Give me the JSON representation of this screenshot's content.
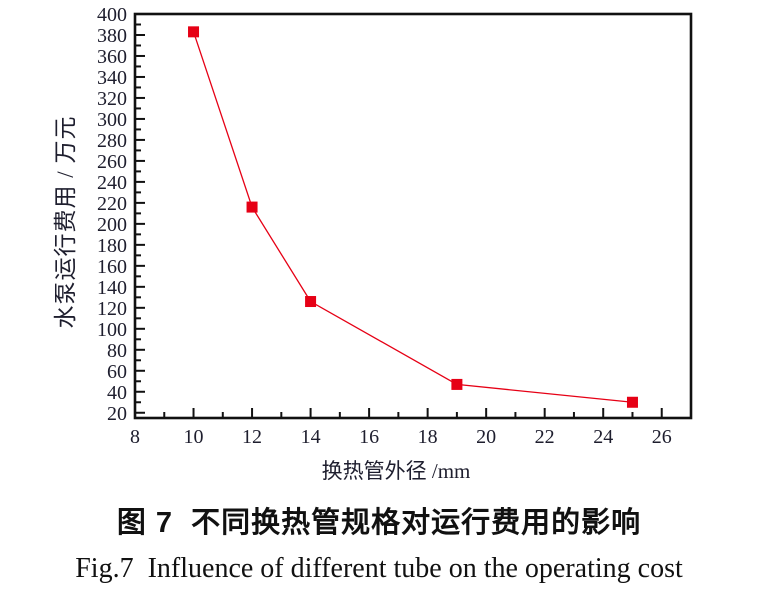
{
  "figure": {
    "captions": {
      "zh": "图 7  不同换热管规格对运行费用的影响",
      "en": "Fig.7  Influence of different tube on the operating cost"
    }
  },
  "chart_data": {
    "type": "line",
    "title": "",
    "xlabel": "换热管外径 /mm",
    "ylabel": "水泵运行费用 / 万元",
    "xlim": [
      8,
      27
    ],
    "ylim": [
      15,
      400
    ],
    "grid": false,
    "legend": "none",
    "x_ticks": {
      "label_start": 8,
      "label_end": 26,
      "major_step": 2,
      "minor_step": 1
    },
    "y_ticks": {
      "label_start": 20,
      "label_end": 400,
      "major_step": 20,
      "minor_step": 10
    },
    "axis_color": "#111111",
    "tick_label_color": "#1e1e2e",
    "series": [
      {
        "name": "水泵运行费用",
        "x": [
          10,
          12,
          14,
          19,
          25
        ],
        "y": [
          383,
          216,
          126,
          47,
          30
        ],
        "color": "#e60015",
        "marker": "square",
        "marker_size": 11,
        "line_width": 1.3
      }
    ]
  }
}
